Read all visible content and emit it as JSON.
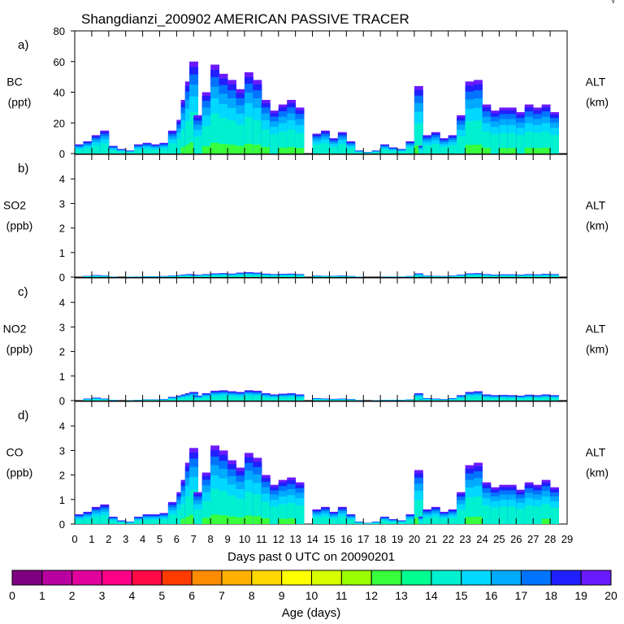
{
  "title": "Shangdianzi_200902 AMERICAN PASSIVE TRACER",
  "xlabel": "Days past 0 UTC on 20090201",
  "colorbar": {
    "label": "Age (days)",
    "ticks": [
      "0",
      "1",
      "2",
      "3",
      "4",
      "5",
      "6",
      "7",
      "8",
      "9",
      "10",
      "11",
      "12",
      "13",
      "14",
      "15",
      "16",
      "17",
      "18",
      "19",
      "20"
    ],
    "colors": [
      "#7e0080",
      "#b800a0",
      "#e0009c",
      "#ff0088",
      "#ff0a45",
      "#ff3b00",
      "#ff8c00",
      "#ffb000",
      "#ffd700",
      "#ffff00",
      "#d7ff00",
      "#9aff00",
      "#38ff3c",
      "#00ff91",
      "#00f0d0",
      "#00d8ff",
      "#00aaff",
      "#0074ff",
      "#2020ff",
      "#6a1aff"
    ]
  },
  "chart_data": {
    "type": "area",
    "x_ticks": [
      "0",
      "1",
      "2",
      "3",
      "4",
      "5",
      "6",
      "7",
      "8",
      "9",
      "10",
      "11",
      "12",
      "13",
      "14",
      "15",
      "16",
      "17",
      "18",
      "19",
      "20",
      "21",
      "22",
      "23",
      "24",
      "25",
      "26",
      "27",
      "28",
      "29"
    ],
    "xlim": [
      0,
      29
    ],
    "x": [
      0,
      0.5,
      1,
      1.5,
      2,
      2.5,
      3,
      3.5,
      4,
      4.5,
      5,
      5.5,
      6,
      6.25,
      6.5,
      6.75,
      7,
      7.5,
      8,
      8.5,
      9,
      9.5,
      10,
      10.5,
      11,
      11.5,
      12,
      12.5,
      13,
      13.5,
      14,
      14.5,
      15,
      15.5,
      16,
      16.5,
      17,
      17.5,
      18,
      18.5,
      19,
      19.5,
      20,
      20.25,
      20.5,
      21,
      21.5,
      22,
      22.5,
      23,
      23.5,
      24,
      24.5,
      25,
      25.5,
      26,
      26.5,
      27,
      27.5,
      28
    ],
    "panels": [
      {
        "label": "a)",
        "species": "BC",
        "unit": "(ppt)",
        "right_label": "ALT",
        "right_unit": "(km)",
        "y_ticks": [
          "0",
          "20",
          "40",
          "60",
          "80"
        ],
        "ylim": [
          0,
          80
        ],
        "values": [
          6,
          8,
          12,
          15,
          5,
          3,
          2,
          6,
          7,
          6,
          7,
          15,
          22,
          35,
          47,
          60,
          25,
          40,
          58,
          52,
          48,
          42,
          53,
          48,
          35,
          28,
          32,
          35,
          30,
          0,
          13,
          15,
          10,
          14,
          8,
          2,
          1,
          2,
          6,
          4,
          3,
          8,
          44,
          5,
          12,
          14,
          10,
          12,
          25,
          47,
          48,
          32,
          28,
          30,
          30,
          27,
          32,
          30,
          32,
          27
        ]
      },
      {
        "label": "b)",
        "species": "SO2",
        "unit": "(ppb)",
        "right_label": "ALT",
        "right_unit": "(km)",
        "y_ticks": [
          "0",
          "1",
          "2",
          "3",
          "4"
        ],
        "ylim": [
          0,
          5
        ],
        "values": [
          0,
          0.05,
          0.08,
          0.06,
          0.02,
          0,
          0.01,
          0.02,
          0.03,
          0.03,
          0.04,
          0.06,
          0.08,
          0.1,
          0.12,
          0.1,
          0.09,
          0.12,
          0.15,
          0.16,
          0.14,
          0.18,
          0.2,
          0.18,
          0.14,
          0.12,
          0.13,
          0.14,
          0.12,
          0,
          0.06,
          0.05,
          0.05,
          0.06,
          0.04,
          0.01,
          0,
          0,
          0.02,
          0.02,
          0.02,
          0.04,
          0.15,
          0.03,
          0.06,
          0.05,
          0.04,
          0.06,
          0.1,
          0.15,
          0.16,
          0.12,
          0.1,
          0.11,
          0.11,
          0.1,
          0.12,
          0.11,
          0.13,
          0.12
        ]
      },
      {
        "label": "c)",
        "species": "NO2",
        "unit": "(ppb)",
        "right_label": "ALT",
        "right_unit": "(km)",
        "y_ticks": [
          "0",
          "1",
          "2",
          "3",
          "4"
        ],
        "ylim": [
          0,
          5
        ],
        "values": [
          0,
          0.08,
          0.12,
          0.08,
          0.03,
          0,
          0.01,
          0.03,
          0.05,
          0.05,
          0.06,
          0.15,
          0.2,
          0.25,
          0.3,
          0.35,
          0.2,
          0.3,
          0.4,
          0.42,
          0.38,
          0.35,
          0.42,
          0.4,
          0.3,
          0.25,
          0.28,
          0.3,
          0.25,
          0,
          0.1,
          0.08,
          0.07,
          0.08,
          0.06,
          0.02,
          0,
          0.01,
          0.03,
          0.03,
          0.03,
          0.05,
          0.3,
          0.05,
          0.1,
          0.08,
          0.06,
          0.1,
          0.22,
          0.35,
          0.38,
          0.25,
          0.22,
          0.23,
          0.22,
          0.2,
          0.24,
          0.22,
          0.25,
          0.22
        ]
      },
      {
        "label": "d)",
        "species": "CO",
        "unit": "(ppb)",
        "right_label": "ALT",
        "right_unit": "(km)",
        "y_ticks": [
          "0",
          "1",
          "2",
          "3",
          "4"
        ],
        "ylim": [
          0,
          5
        ],
        "values": [
          0.4,
          0.5,
          0.7,
          0.8,
          0.3,
          0.15,
          0.1,
          0.3,
          0.4,
          0.4,
          0.45,
          0.9,
          1.3,
          1.8,
          2.5,
          3.1,
          1.3,
          2.1,
          3.2,
          3.0,
          2.6,
          2.3,
          2.9,
          2.7,
          2.0,
          1.6,
          1.8,
          1.9,
          1.7,
          0,
          0.6,
          0.7,
          0.5,
          0.7,
          0.4,
          0.1,
          0.05,
          0.1,
          0.3,
          0.2,
          0.15,
          0.4,
          2.2,
          0.3,
          0.6,
          0.7,
          0.5,
          0.6,
          1.3,
          2.4,
          2.5,
          1.7,
          1.5,
          1.6,
          1.6,
          1.4,
          1.7,
          1.6,
          1.8,
          1.5
        ]
      }
    ]
  }
}
